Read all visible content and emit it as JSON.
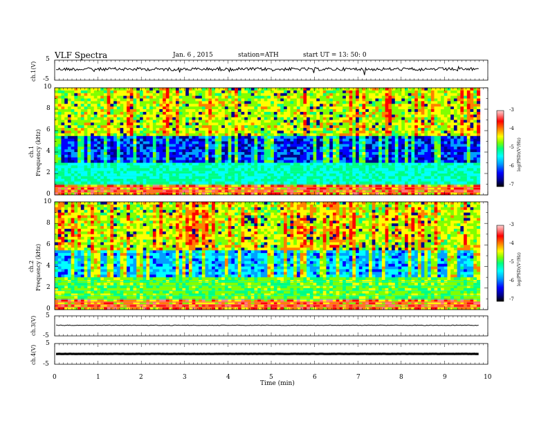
{
  "header": {
    "title": "VLF  Spectra",
    "date": "Jan. 6  , 2015",
    "station": "station=ATH",
    "start": "start  UT  =    13: 50: 0"
  },
  "chart_data": [
    {
      "type": "line",
      "panel": "ch1-waveform",
      "ylabel": "ch.1(V)",
      "ylim": [
        -5,
        5
      ],
      "yticks": [
        "5",
        "-5"
      ],
      "baseline": 0.5,
      "amplitude": 0.8
    },
    {
      "type": "heatmap",
      "panel": "ch1-spectrogram",
      "ylabel": "Frequency  (kHz)",
      "channel_label": "ch.1",
      "ylim": [
        0,
        10
      ],
      "yticks": [
        "0",
        "2",
        "4",
        "6",
        "8",
        "10"
      ],
      "colorbar": {
        "label": "log(PSD)(V²/Hz)",
        "ticks": [
          "-3",
          "-4",
          "-5",
          "-6",
          "-7"
        ],
        "range": [
          -7,
          -3
        ]
      }
    },
    {
      "type": "heatmap",
      "panel": "ch2-spectrogram",
      "ylabel": "Frequency  (kHz)",
      "channel_label": "ch.2",
      "ylim": [
        0,
        10
      ],
      "yticks": [
        "0",
        "2",
        "4",
        "6",
        "8",
        "10"
      ],
      "colorbar": {
        "label": "log(PSD)(V²/Hz)",
        "ticks": [
          "-3",
          "-4",
          "-5",
          "-6",
          "-7"
        ],
        "range": [
          -7,
          -3
        ]
      }
    },
    {
      "type": "line",
      "panel": "ch3-waveform",
      "ylabel": "ch.3(V)",
      "ylim": [
        -5,
        5
      ],
      "yticks": [
        "5",
        "-5"
      ],
      "baseline": 0.3,
      "amplitude": 0.15
    },
    {
      "type": "line",
      "panel": "ch4-waveform",
      "ylabel": "ch.4(V)",
      "ylim": [
        -5,
        5
      ],
      "yticks": [
        "5",
        "-5"
      ],
      "baseline": 0.0,
      "amplitude": 0.05
    }
  ],
  "xaxis": {
    "xlabel": "Time  (min)",
    "xlim": [
      0,
      10
    ],
    "ticks": [
      "0",
      "1",
      "2",
      "3",
      "4",
      "5",
      "6",
      "7",
      "8",
      "9",
      "10"
    ],
    "data_end": 9.82
  },
  "colors": {
    "colormap": [
      "#000000",
      "#00008a",
      "#0000ff",
      "#00a0ff",
      "#00ffff",
      "#00ff80",
      "#80ff00",
      "#ffff00",
      "#ff8000",
      "#ff0000",
      "#ff8080",
      "#ffd0d0"
    ]
  }
}
